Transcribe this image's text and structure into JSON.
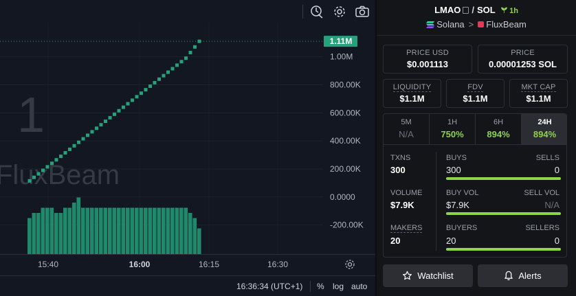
{
  "chart": {
    "watermark_number": "1",
    "watermark_brand": "FluxBeam",
    "last_price_badge": "1.11M",
    "price_axis_labels": [
      "1.00M",
      "800.00K",
      "600.00K",
      "400.00K",
      "200.00K",
      "0.0000",
      "-200.00K"
    ],
    "time_axis_labels": [
      {
        "text": "15:40",
        "bold": false
      },
      {
        "text": "16:00",
        "bold": true
      },
      {
        "text": "16:15",
        "bold": false
      },
      {
        "text": "16:30",
        "bold": false
      }
    ],
    "clock": "16:36:34 (UTC+1)",
    "scale_buttons": [
      "%",
      "log",
      "auto"
    ],
    "colors": {
      "up": "#26a17b",
      "volume": "#1f8a6b",
      "badge": "#26a17b"
    }
  },
  "chart_data": {
    "type": "line",
    "title": "",
    "xlabel": "",
    "ylabel": "",
    "x": [
      "15:37",
      "15:38",
      "15:39",
      "15:40",
      "15:41",
      "15:42",
      "15:43",
      "15:44",
      "15:45",
      "15:46",
      "15:47",
      "15:48",
      "15:49",
      "15:50",
      "15:51",
      "15:52",
      "15:53",
      "15:54",
      "15:55",
      "15:56",
      "15:57",
      "15:58",
      "15:59",
      "16:00",
      "16:01",
      "16:02",
      "16:03",
      "16:04",
      "16:05",
      "16:06",
      "16:07",
      "16:08",
      "16:09",
      "16:10",
      "16:11",
      "16:12",
      "16:13",
      "16:14",
      "16:15"
    ],
    "series": [
      {
        "values": [
          115000,
          140000,
          165000,
          190000,
          215000,
          240000,
          265000,
          290000,
          315000,
          340000,
          365000,
          390000,
          415000,
          440000,
          465000,
          490000,
          515000,
          540000,
          565000,
          590000,
          615000,
          640000,
          665000,
          690000,
          715000,
          740000,
          765000,
          790000,
          815000,
          840000,
          865000,
          890000,
          915000,
          940000,
          965000,
          990000,
          1030000,
          1070000,
          1110000
        ]
      },
      {
        "values": [
          7,
          8,
          8,
          9,
          9,
          9,
          8,
          8,
          9,
          9,
          10,
          11,
          9,
          9,
          9,
          9,
          9,
          9,
          9,
          9,
          9,
          9,
          9,
          9,
          9,
          9,
          9,
          9,
          9,
          9,
          9,
          9,
          9,
          9,
          9,
          9,
          8,
          7,
          5
        ]
      }
    ],
    "ylim": [
      -280000,
      1150000
    ]
  },
  "pair": {
    "base": "LMAO",
    "quote": "SOL",
    "age": "1h",
    "chain": "Solana",
    "dex": "FluxBeam"
  },
  "prices": {
    "usd_label": "PRICE USD",
    "usd_value": "$0.001113",
    "native_label": "PRICE",
    "native_value": "0.00001253 SOL"
  },
  "metrics": [
    {
      "label": "LIQUIDITY",
      "value": "$1.1M"
    },
    {
      "label": "FDV",
      "value": "$1.1M"
    },
    {
      "label": "MKT CAP",
      "value": "$1.1M"
    }
  ],
  "timeframes": [
    {
      "label": "5M",
      "value": "N/A"
    },
    {
      "label": "1H",
      "value": "750%"
    },
    {
      "label": "6H",
      "value": "894%"
    },
    {
      "label": "24H",
      "value": "894%"
    }
  ],
  "stats": {
    "txns_label": "TXNS",
    "txns": "300",
    "buys_label": "BUYS",
    "buys": "300",
    "sells_label": "SELLS",
    "sells": "0",
    "volume_label": "VOLUME",
    "volume": "$7.9K",
    "buy_vol_label": "BUY VOL",
    "buy_vol": "$7.9K",
    "sell_vol_label": "SELL VOL",
    "sell_vol": "N/A",
    "makers_label": "MAKERS",
    "makers": "20",
    "buyers_label": "BUYERS",
    "buyers": "20",
    "sellers_label": "SELLERS",
    "sellers": "0",
    "buys_ratio": 1.0,
    "buy_vol_ratio": 1.0,
    "buyers_ratio": 1.0
  },
  "actions": {
    "watchlist": "Watchlist",
    "alerts": "Alerts"
  }
}
